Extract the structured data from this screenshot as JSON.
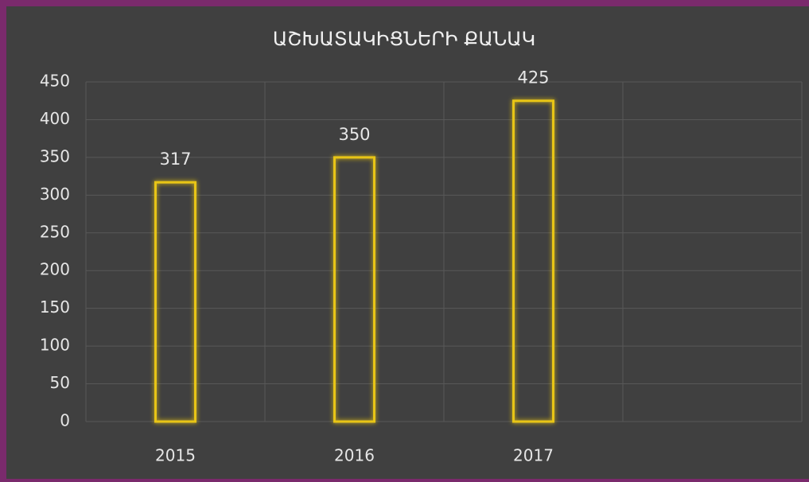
{
  "chart_data": {
    "type": "bar",
    "title": "ԱՇԽԱՏԱԿԻՑՆԵՐԻ ՔԱՆԱԿ",
    "categories": [
      "2015",
      "2016",
      "2017",
      null
    ],
    "values": [
      317,
      350,
      425,
      null
    ],
    "color": "#e8c514",
    "ylim": [
      0,
      450
    ],
    "yticks": [
      0,
      50,
      100,
      150,
      200,
      250,
      300,
      350,
      400,
      450
    ],
    "grid": true
  }
}
